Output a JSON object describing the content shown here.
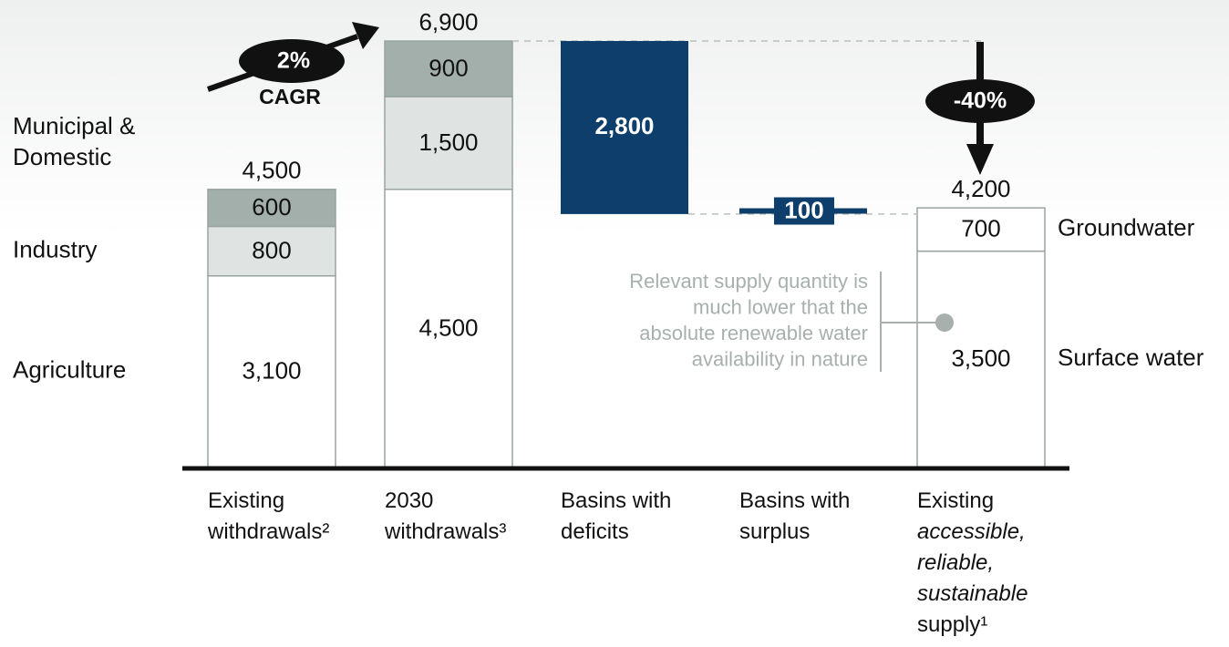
{
  "colors": {
    "dark_gray": "#a3afab",
    "light_gray": "#dfe4e3",
    "white": "#ffffff",
    "navy": "#0e3e6b",
    "outline": "#9aa4a2",
    "annotation_gray": "#a7b0ad",
    "axis": "#111111"
  },
  "chart_data": {
    "type": "bar",
    "subtype": "waterfall",
    "categories": [
      [
        "Existing",
        "withdrawals²"
      ],
      [
        "2030",
        "withdrawals³"
      ],
      [
        "Basins with",
        "deficits"
      ],
      [
        "Basins with",
        "surplus"
      ],
      [
        "Existing",
        "accessible,",
        "reliable,",
        "sustainable",
        "supply¹"
      ]
    ],
    "italic_category_lines": [
      [],
      [],
      [],
      [],
      [
        1,
        2,
        3
      ]
    ],
    "ylim": [
      0,
      7000
    ],
    "stacks": [
      {
        "category_index": 0,
        "total_label": "4,500",
        "segments": [
          {
            "name": "Agriculture",
            "value": 3100,
            "label": "3,100",
            "color": "white"
          },
          {
            "name": "Industry",
            "value": 800,
            "label": "800",
            "color": "light_gray"
          },
          {
            "name": "Municipal & Domestic",
            "value": 600,
            "label": "600",
            "color": "dark_gray"
          }
        ]
      },
      {
        "category_index": 1,
        "total_label": "6,900",
        "segments": [
          {
            "name": "Agriculture",
            "value": 4500,
            "label": "4,500",
            "color": "white"
          },
          {
            "name": "Industry",
            "value": 1500,
            "label": "1,500",
            "color": "light_gray"
          },
          {
            "name": "Municipal & Domestic",
            "value": 900,
            "label": "900",
            "color": "dark_gray"
          }
        ]
      },
      {
        "category_index": 4,
        "total_label": "4,200",
        "segments": [
          {
            "name": "Surface water",
            "value": 3500,
            "label": "3,500",
            "color": "white"
          },
          {
            "name": "Groundwater",
            "value": 700,
            "label": "700",
            "color": "white"
          }
        ]
      }
    ],
    "floating": [
      {
        "category_index": 2,
        "from": 6900,
        "to": 4100,
        "label": "2,800",
        "color": "navy"
      },
      {
        "category_index": 3,
        "from": 4100,
        "to": 4200,
        "label": "100",
        "color": "navy"
      }
    ],
    "left_legend": [
      {
        "lines": [
          "Municipal &",
          "Domestic"
        ],
        "value": 5250
      },
      {
        "lines": [
          "Industry"
        ],
        "value": 3500
      },
      {
        "lines": [
          "Agriculture"
        ],
        "value": 1550
      }
    ],
    "right_legend": [
      {
        "text": "Groundwater",
        "value": 3850
      },
      {
        "text": "Surface water",
        "value": 1750
      }
    ],
    "annotations": {
      "cagr": {
        "value": "2%",
        "label": "CAGR"
      },
      "decline": {
        "value": "-40%"
      },
      "note_lines": [
        "Relevant supply quantity is",
        "much lower that the",
        "absolute renewable water",
        "availability in nature"
      ]
    }
  }
}
